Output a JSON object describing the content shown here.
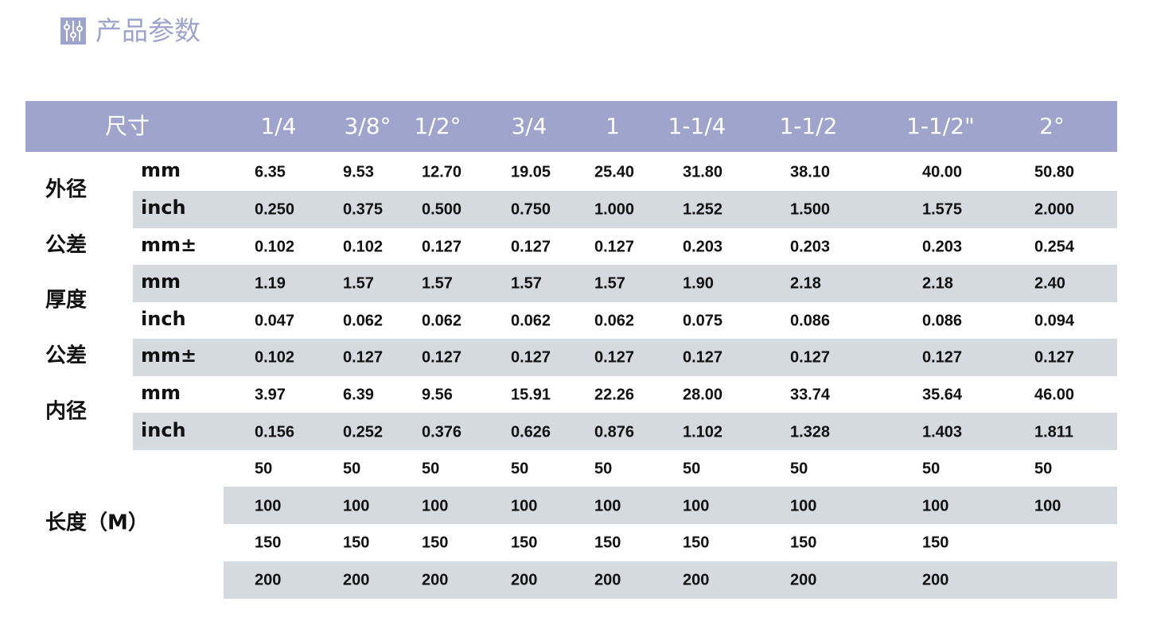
{
  "header": {
    "title": "产品参数"
  },
  "table": {
    "corner": "尺寸",
    "columns": [
      "1/4",
      "3/8°",
      "1/2°",
      "3/4",
      "1",
      "1-1/4",
      "1-1/2",
      "1-1/2\"",
      "2°"
    ],
    "groups": [
      {
        "label": "外径",
        "rows": [
          {
            "unit": "mm",
            "values": [
              "6.35",
              "9.53",
              "12.70",
              "19.05",
              "25.40",
              "31.80",
              "38.10",
              "40.00",
              "50.80"
            ]
          },
          {
            "unit": "inch",
            "values": [
              "0.250",
              "0.375",
              "0.500",
              "0.750",
              "1.000",
              "1.252",
              "1.500",
              "1.575",
              "2.000"
            ]
          }
        ]
      },
      {
        "label": "公差",
        "rows": [
          {
            "unit": "mm±",
            "values": [
              "0.102",
              "0.102",
              "0.127",
              "0.127",
              "0.127",
              "0.203",
              "0.203",
              "0.203",
              "0.254"
            ]
          }
        ]
      },
      {
        "label": "厚度",
        "rows": [
          {
            "unit": "mm",
            "values": [
              "1.19",
              "1.57",
              "1.57",
              "1.57",
              "1.57",
              "1.90",
              "2.18",
              "2.18",
              "2.40"
            ]
          },
          {
            "unit": "inch",
            "values": [
              "0.047",
              "0.062",
              "0.062",
              "0.062",
              "0.062",
              "0.075",
              "0.086",
              "0.086",
              "0.094"
            ]
          }
        ]
      },
      {
        "label": "公差",
        "rows": [
          {
            "unit": "mm±",
            "values": [
              "0.102",
              "0.127",
              "0.127",
              "0.127",
              "0.127",
              "0.127",
              "0.127",
              "0.127",
              "0.127"
            ]
          }
        ]
      },
      {
        "label": "内径",
        "rows": [
          {
            "unit": "mm",
            "values": [
              "3.97",
              "6.39",
              "9.56",
              "15.91",
              "22.26",
              "28.00",
              "33.74",
              "35.64",
              "46.00"
            ]
          },
          {
            "unit": "inch",
            "values": [
              "0.156",
              "0.252",
              "0.376",
              "0.626",
              "0.876",
              "1.102",
              "1.328",
              "1.403",
              "1.811"
            ]
          }
        ]
      },
      {
        "label": "长度（M）",
        "rows": [
          {
            "values": [
              "50",
              "50",
              "50",
              "50",
              "50",
              "50",
              "50",
              "50",
              "50"
            ]
          },
          {
            "values": [
              "100",
              "100",
              "100",
              "100",
              "100",
              "100",
              "100",
              "100",
              "100"
            ]
          },
          {
            "values": [
              "150",
              "150",
              "150",
              "150",
              "150",
              "150",
              "150",
              "150",
              null
            ]
          },
          {
            "values": [
              "200",
              "200",
              "200",
              "200",
              "200",
              "200",
              "200",
              "200",
              null
            ]
          }
        ]
      }
    ]
  }
}
